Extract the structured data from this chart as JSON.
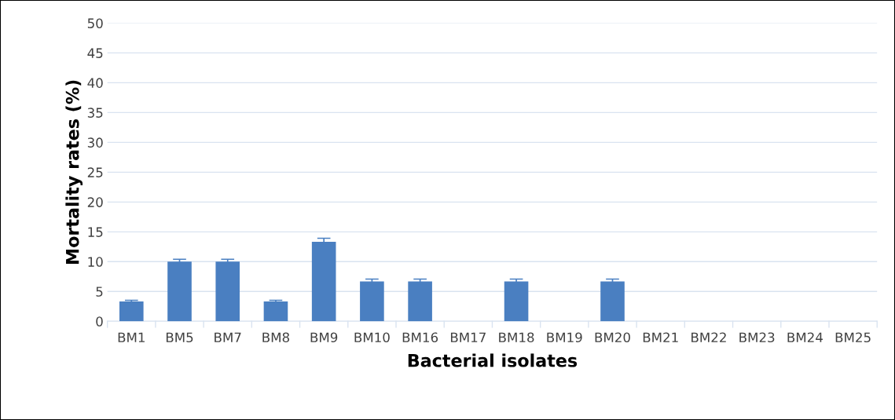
{
  "chart_data": {
    "type": "bar",
    "xlabel": "Bacterial isolates",
    "ylabel": "Mortality rates (%)",
    "categories": [
      "BM1",
      "BM5",
      "BM7",
      "BM8",
      "BM9",
      "BM10",
      "BM16",
      "BM17",
      "BM18",
      "BM19",
      "BM20",
      "BM21",
      "BM22",
      "BM23",
      "BM24",
      "BM25"
    ],
    "values": [
      3.33,
      10,
      10,
      3.33,
      13.33,
      6.67,
      6.67,
      0,
      6.67,
      0,
      6.67,
      0,
      0,
      0,
      0,
      0
    ],
    "errors": [
      0.2,
      0.4,
      0.4,
      0.2,
      0.6,
      0.4,
      0.4,
      null,
      0.4,
      null,
      0.4,
      null,
      null,
      null,
      null,
      null
    ],
    "color": "#4a7fc1",
    "ylim": [
      0,
      50
    ],
    "yticks": [
      0,
      5,
      10,
      15,
      20,
      25,
      30,
      35,
      40,
      45,
      50
    ],
    "grid": "y",
    "legend": false
  }
}
